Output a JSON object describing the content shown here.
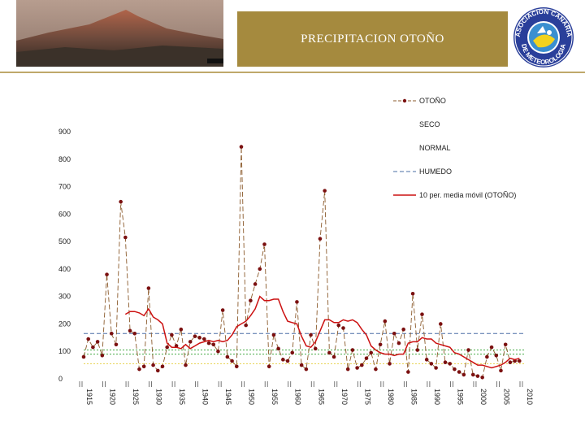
{
  "header": {
    "title": "PRECIPITACION OTOÑO",
    "logo_top_text": "ASOCIACION CANARIA",
    "logo_bottom_text": "DE METEOROLOGIA"
  },
  "colors": {
    "accent": "#a58a3e",
    "series": "#7b1010",
    "moving_avg": "#cc1111",
    "humedo": "#4a6fa5",
    "normal": "#44aa44",
    "seco": "#e8d14a"
  },
  "chart_data": {
    "type": "line",
    "title": "PRECIPITACION OTOÑO",
    "xlabel": "",
    "ylabel": "",
    "xlim": [
      1915,
      2010
    ],
    "ylim": [
      0,
      900
    ],
    "yticks": [
      0,
      100,
      200,
      300,
      400,
      500,
      600,
      700,
      800,
      900
    ],
    "xticks": [
      1915,
      1920,
      1925,
      1930,
      1935,
      1940,
      1945,
      1950,
      1955,
      1960,
      1965,
      1970,
      1975,
      1980,
      1985,
      1990,
      1995,
      2000,
      2005,
      2010
    ],
    "legend": [
      "OTOÑO",
      "SECO",
      "NORMAL",
      "HUMEDO",
      "10 per. media móvil (OTOÑO)"
    ],
    "legend_position": "top-right",
    "series": [
      {
        "name": "OTOÑO",
        "x": [
          1915,
          1916,
          1917,
          1918,
          1919,
          1920,
          1921,
          1922,
          1923,
          1924,
          1925,
          1926,
          1927,
          1928,
          1929,
          1930,
          1931,
          1932,
          1933,
          1934,
          1935,
          1936,
          1937,
          1938,
          1939,
          1940,
          1941,
          1942,
          1943,
          1944,
          1945,
          1946,
          1947,
          1948,
          1949,
          1950,
          1951,
          1952,
          1953,
          1954,
          1955,
          1956,
          1957,
          1958,
          1959,
          1960,
          1961,
          1962,
          1963,
          1964,
          1965,
          1966,
          1967,
          1968,
          1969,
          1970,
          1971,
          1972,
          1973,
          1974,
          1975,
          1976,
          1977,
          1978,
          1979,
          1980,
          1981,
          1982,
          1983,
          1984,
          1985,
          1986,
          1987,
          1988,
          1989,
          1990,
          1991,
          1992,
          1993,
          1994,
          1995,
          1996,
          1997,
          1998,
          1999,
          2000,
          2001,
          2002,
          2003,
          2004,
          2005,
          2006,
          2007,
          2008,
          2009
        ],
        "values": [
          80,
          145,
          115,
          135,
          85,
          380,
          165,
          125,
          645,
          515,
          175,
          165,
          35,
          45,
          330,
          50,
          30,
          45,
          115,
          160,
          120,
          180,
          50,
          135,
          155,
          150,
          145,
          130,
          125,
          100,
          250,
          80,
          65,
          45,
          845,
          195,
          285,
          345,
          400,
          490,
          45,
          160,
          110,
          70,
          65,
          95,
          280,
          50,
          35,
          160,
          110,
          510,
          685,
          95,
          80,
          195,
          185,
          35,
          105,
          40,
          50,
          75,
          95,
          35,
          125,
          210,
          55,
          165,
          130,
          180,
          25,
          310,
          105,
          235,
          70,
          55,
          40,
          200,
          60,
          55,
          35,
          25,
          15,
          105,
          15,
          10,
          5,
          80,
          115,
          85,
          30,
          125,
          60,
          65,
          65
        ]
      },
      {
        "name": "10 per. media móvil (OTOÑO)",
        "x": [
          1924,
          1925,
          1926,
          1927,
          1928,
          1929,
          1930,
          1931,
          1932,
          1933,
          1934,
          1935,
          1936,
          1937,
          1938,
          1939,
          1940,
          1941,
          1942,
          1943,
          1944,
          1945,
          1946,
          1947,
          1948,
          1949,
          1950,
          1951,
          1952,
          1953,
          1954,
          1955,
          1956,
          1957,
          1958,
          1959,
          1960,
          1961,
          1962,
          1963,
          1964,
          1965,
          1966,
          1967,
          1968,
          1969,
          1970,
          1971,
          1972,
          1973,
          1974,
          1975,
          1976,
          1977,
          1978,
          1979,
          1980,
          1981,
          1982,
          1983,
          1984,
          1985,
          1986,
          1987,
          1988,
          1989,
          1990,
          1991,
          1992,
          1993,
          1994,
          1995,
          1996,
          1997,
          1998,
          1999,
          2000,
          2001,
          2002,
          2003,
          2004,
          2005,
          2006,
          2007,
          2008,
          2009
        ],
        "values": [
          235,
          245,
          245,
          240,
          230,
          255,
          225,
          215,
          200,
          130,
          115,
          115,
          110,
          125,
          110,
          120,
          130,
          135,
          140,
          135,
          140,
          135,
          140,
          160,
          190,
          200,
          210,
          230,
          255,
          300,
          285,
          285,
          290,
          290,
          245,
          210,
          205,
          200,
          155,
          120,
          115,
          135,
          175,
          215,
          215,
          205,
          205,
          215,
          210,
          215,
          205,
          180,
          160,
          120,
          105,
          95,
          90,
          90,
          85,
          90,
          90,
          130,
          135,
          135,
          150,
          145,
          145,
          130,
          125,
          120,
          115,
          95,
          90,
          80,
          70,
          60,
          50,
          50,
          45,
          40,
          45,
          50,
          60,
          75,
          70,
          75
        ]
      }
    ],
    "thresholds": [
      {
        "name": "HUMEDO",
        "value": 165
      },
      {
        "name": "NORMAL",
        "value": 105
      },
      {
        "name": "NORMAL",
        "value": 90
      },
      {
        "name": "SECO",
        "value": 55
      }
    ]
  }
}
